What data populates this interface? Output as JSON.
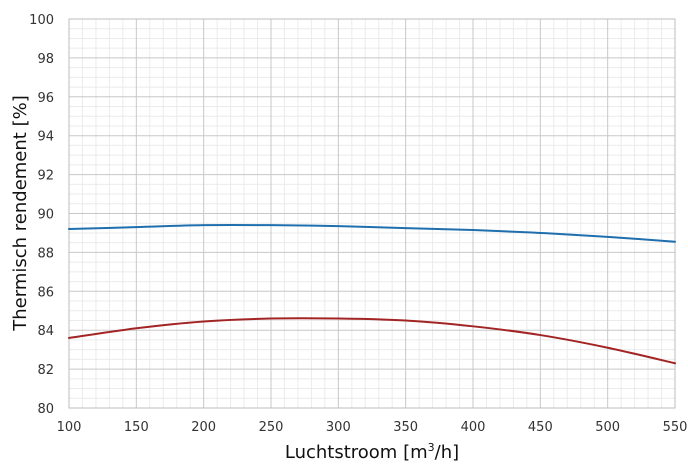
{
  "chart_data": {
    "type": "line",
    "title": "",
    "xlabel": "Luchtstroom [m",
    "xlabel_sup": "3",
    "xlabel_tail": "/h]",
    "ylabel": "Thermisch rendement [%]",
    "xlim": [
      100,
      550
    ],
    "ylim": [
      80,
      100
    ],
    "x_ticks": [
      100,
      150,
      200,
      250,
      300,
      350,
      400,
      450,
      500,
      550
    ],
    "y_ticks": [
      80,
      82,
      84,
      86,
      88,
      90,
      92,
      94,
      96,
      98,
      100
    ],
    "grid": true,
    "legend": "none",
    "series": [
      {
        "color": "#1f6fae",
        "x": [
          100,
          150,
          200,
          250,
          300,
          350,
          400,
          450,
          500,
          550
        ],
        "y": [
          89.2,
          89.3,
          89.4,
          89.4,
          89.35,
          89.25,
          89.15,
          89.0,
          88.8,
          88.55
        ]
      },
      {
        "color": "#a32424",
        "x": [
          100,
          150,
          200,
          250,
          300,
          350,
          400,
          450,
          500,
          550
        ],
        "y": [
          83.6,
          84.1,
          84.45,
          84.6,
          84.6,
          84.5,
          84.2,
          83.75,
          83.1,
          82.3
        ]
      }
    ]
  }
}
